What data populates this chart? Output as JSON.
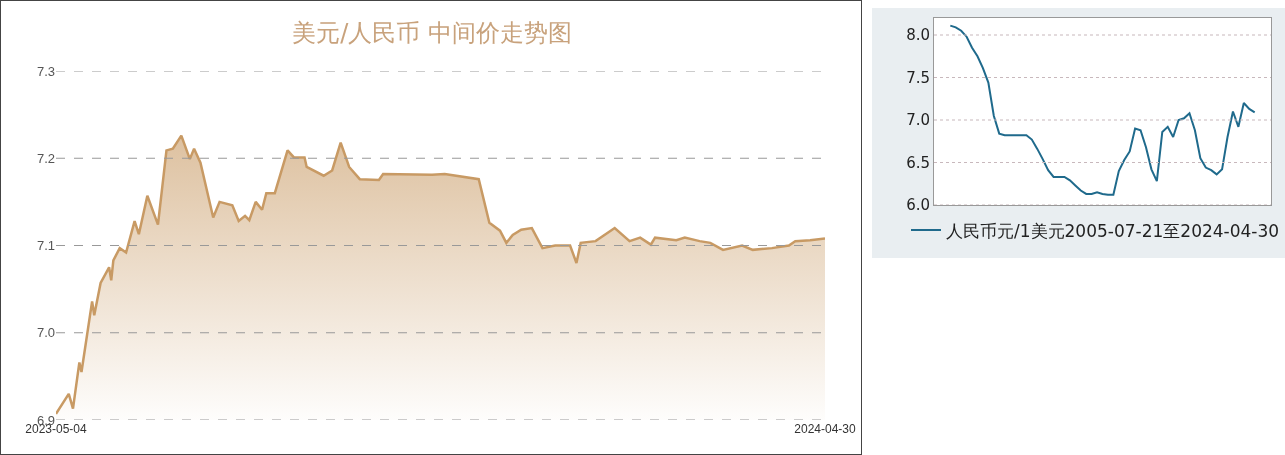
{
  "chart_data": [
    {
      "type": "area",
      "title": "美元/人民币 中间价走势图",
      "grid": "y",
      "xlim": [
        "2023-05-04",
        "2024-04-30"
      ],
      "xticks": [
        "2023-05-04",
        "2024-04-30"
      ],
      "ylim": [
        6.9,
        7.3
      ],
      "yticks": [
        6.9,
        {
          "value": 7.0,
          "label": "7.0"
        },
        7.1,
        7.2,
        7.3
      ],
      "series": [
        {
          "color": "#c89a64",
          "x": [
            "2023-05-04",
            "2023-05-10",
            "2023-05-12",
            "2023-05-15",
            "2023-05-16",
            "2023-05-21",
            "2023-05-22",
            "2023-05-25",
            "2023-05-29",
            "2023-05-30",
            "2023-05-31",
            "2023-06-03",
            "2023-06-06",
            "2023-06-10",
            "2023-06-12",
            "2023-06-16",
            "2023-06-21",
            "2023-06-25",
            "2023-06-28",
            "2023-07-02",
            "2023-07-06",
            "2023-07-08",
            "2023-07-11",
            "2023-07-17",
            "2023-07-20",
            "2023-07-26",
            "2023-07-29",
            "2023-08-01",
            "2023-08-03",
            "2023-08-06",
            "2023-08-09",
            "2023-08-11",
            "2023-08-15",
            "2023-08-21",
            "2023-08-24",
            "2023-08-29",
            "2023-08-30",
            "2023-09-07",
            "2023-09-11",
            "2023-09-15",
            "2023-09-19",
            "2023-09-24",
            "2023-10-03",
            "2023-10-05",
            "2023-10-28",
            "2023-11-03",
            "2023-11-19",
            "2023-11-24",
            "2023-11-29",
            "2023-12-02",
            "2023-12-05",
            "2023-12-09",
            "2023-12-14",
            "2023-12-19",
            "2023-12-25",
            "2024-01-01",
            "2024-01-04",
            "2024-01-06",
            "2024-01-13",
            "2024-01-22",
            "2024-01-29",
            "2024-02-03",
            "2024-02-08",
            "2024-02-10",
            "2024-02-20",
            "2024-02-24",
            "2024-03-02",
            "2024-03-07",
            "2024-03-13",
            "2024-03-22",
            "2024-03-27",
            "2024-04-05",
            "2024-04-13",
            "2024-04-16",
            "2024-04-23",
            "2024-04-30"
          ],
          "values": [
            6.907,
            6.93,
            6.913,
            6.966,
            6.955,
            7.036,
            7.02,
            7.057,
            7.075,
            7.06,
            7.083,
            7.097,
            7.092,
            7.128,
            7.113,
            7.157,
            7.124,
            7.209,
            7.211,
            7.226,
            7.199,
            7.211,
            7.195,
            7.132,
            7.15,
            7.146,
            7.128,
            7.134,
            7.129,
            7.15,
            7.141,
            7.16,
            7.16,
            7.209,
            7.201,
            7.201,
            7.19,
            7.18,
            7.186,
            7.218,
            7.19,
            7.176,
            7.175,
            7.182,
            7.181,
            7.182,
            7.176,
            7.126,
            7.117,
            7.103,
            7.112,
            7.118,
            7.12,
            7.097,
            7.1,
            7.1,
            7.08,
            7.103,
            7.105,
            7.12,
            7.105,
            7.109,
            7.101,
            7.109,
            7.106,
            7.109,
            7.105,
            7.103,
            7.095,
            7.1,
            7.095,
            7.097,
            7.1,
            7.105,
            7.106,
            7.108
          ]
        }
      ]
    },
    {
      "type": "line",
      "grid": "y",
      "legend": "bottom",
      "tick_labels": "y",
      "ylim": [
        6.0,
        8.2
      ],
      "yticks": [
        {
          "value": 6.0,
          "label": "6.0"
        },
        {
          "value": 6.5,
          "label": "6.5"
        },
        {
          "value": 7.0,
          "label": "7.0"
        },
        {
          "value": 7.5,
          "label": "7.5"
        },
        {
          "value": 8.0,
          "label": "8.0"
        }
      ],
      "categories": [
        null,
        null,
        null,
        null,
        null,
        null,
        null,
        null,
        null,
        null,
        null,
        null,
        null,
        null,
        null,
        null,
        null,
        null,
        null,
        null,
        null,
        null,
        null,
        null,
        null,
        null,
        null,
        null,
        null,
        null,
        null,
        null,
        null,
        null,
        null,
        null,
        null,
        null,
        null,
        null,
        null,
        null,
        null,
        null,
        null,
        null,
        null,
        null,
        null,
        null,
        null,
        null,
        null,
        null,
        null,
        null,
        null
      ],
      "series": [
        {
          "name": "人民币元/1美元2005-07-21至2024-04-30",
          "color": "#1f6a8c",
          "values": [
            8.11,
            8.09,
            8.05,
            7.98,
            7.85,
            7.75,
            7.61,
            7.44,
            7.05,
            6.84,
            6.82,
            6.82,
            6.82,
            6.82,
            6.82,
            6.77,
            6.66,
            6.54,
            6.41,
            6.33,
            6.33,
            6.33,
            6.29,
            6.23,
            6.17,
            6.13,
            6.13,
            6.15,
            6.13,
            6.12,
            6.12,
            6.4,
            6.53,
            6.63,
            6.9,
            6.88,
            6.68,
            6.42,
            6.28,
            6.86,
            6.92,
            6.8,
            7.0,
            7.02,
            7.08,
            6.88,
            6.55,
            6.44,
            6.41,
            6.36,
            6.42,
            6.8,
            7.1,
            6.92,
            7.2,
            7.13,
            7.09
          ]
        }
      ]
    }
  ]
}
